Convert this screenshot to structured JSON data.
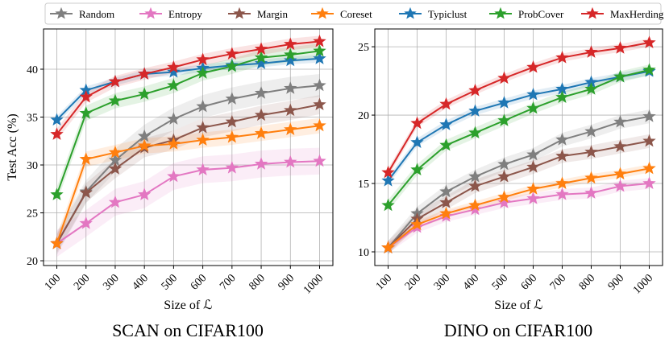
{
  "legend": [
    "Random",
    "Entropy",
    "Margin",
    "Coreset",
    "Typiclust",
    "ProbCover",
    "MaxHerding"
  ],
  "colors": {
    "Random": "#7f7f7f",
    "Entropy": "#e377c2",
    "Margin": "#8c564b",
    "Coreset": "#ff7f0e",
    "Typiclust": "#1f77b4",
    "ProbCover": "#2ca02c",
    "MaxHerding": "#d62728"
  },
  "chart_data": [
    {
      "type": "line",
      "title": "SCAN on CIFAR100",
      "xlabel": "Size of ℒ",
      "ylabel": "Test Acc (%)",
      "x": [
        100,
        200,
        300,
        400,
        500,
        600,
        700,
        800,
        900,
        1000
      ],
      "xtick_labels": [
        "100",
        "200",
        "300",
        "400",
        "500",
        "600",
        "700",
        "800",
        "900",
        "1000"
      ],
      "yticks": [
        20,
        25,
        30,
        35,
        40
      ],
      "ylim": [
        19.5,
        44.2
      ],
      "grid": true,
      "series": [
        {
          "name": "Random",
          "values": [
            21.8,
            27.2,
            30.5,
            33.0,
            34.8,
            36.1,
            36.9,
            37.5,
            38.0,
            38.3
          ],
          "band": 1.2
        },
        {
          "name": "Entropy",
          "values": [
            21.8,
            23.9,
            26.1,
            26.9,
            28.8,
            29.5,
            29.7,
            30.1,
            30.3,
            30.4
          ],
          "band": 1.4
        },
        {
          "name": "Margin",
          "values": [
            21.8,
            27.1,
            29.6,
            31.8,
            32.6,
            33.9,
            34.5,
            35.2,
            35.7,
            36.3
          ],
          "band": 1.0
        },
        {
          "name": "Coreset",
          "values": [
            21.8,
            30.6,
            31.3,
            32.0,
            32.2,
            32.6,
            32.9,
            33.3,
            33.7,
            34.1
          ],
          "band": 0.8
        },
        {
          "name": "Typiclust",
          "values": [
            34.7,
            37.8,
            38.7,
            39.5,
            39.7,
            40.1,
            40.4,
            40.6,
            40.9,
            41.1
          ],
          "band": 0.4
        },
        {
          "name": "ProbCover",
          "values": [
            26.9,
            35.4,
            36.7,
            37.4,
            38.3,
            39.6,
            40.3,
            41.2,
            41.5,
            41.9
          ],
          "band": 0.8
        },
        {
          "name": "MaxHerding",
          "values": [
            33.2,
            37.1,
            38.7,
            39.5,
            40.2,
            41.0,
            41.6,
            42.1,
            42.6,
            42.9
          ],
          "band": 0.6
        }
      ]
    },
    {
      "type": "line",
      "title": "DINO on CIFAR100",
      "xlabel": "Size of ℒ",
      "ylabel": "",
      "x": [
        100,
        200,
        300,
        400,
        500,
        600,
        700,
        800,
        900,
        1000
      ],
      "xtick_labels": [
        "100",
        "200",
        "300",
        "400",
        "500",
        "600",
        "700",
        "800",
        "900",
        "1000"
      ],
      "yticks": [
        10,
        15,
        20,
        25
      ],
      "ylim": [
        9.0,
        26.3
      ],
      "grid": true,
      "series": [
        {
          "name": "Random",
          "values": [
            10.3,
            12.8,
            14.4,
            15.5,
            16.4,
            17.1,
            18.2,
            18.8,
            19.5,
            19.9
          ],
          "band": 0.5
        },
        {
          "name": "Entropy",
          "values": [
            10.3,
            11.8,
            12.6,
            13.1,
            13.6,
            13.9,
            14.2,
            14.3,
            14.8,
            15.0
          ],
          "band": 0.4
        },
        {
          "name": "Margin",
          "values": [
            10.3,
            12.4,
            13.6,
            14.8,
            15.5,
            16.2,
            17.0,
            17.3,
            17.7,
            18.1
          ],
          "band": 0.5
        },
        {
          "name": "Coreset",
          "values": [
            10.3,
            12.0,
            12.8,
            13.4,
            14.0,
            14.6,
            15.0,
            15.4,
            15.7,
            16.1
          ],
          "band": 0.3
        },
        {
          "name": "Typiclust",
          "values": [
            15.2,
            18.0,
            19.3,
            20.3,
            20.9,
            21.5,
            21.9,
            22.4,
            22.8,
            23.2
          ],
          "band": 0.3
        },
        {
          "name": "ProbCover",
          "values": [
            13.4,
            16.0,
            17.8,
            18.7,
            19.6,
            20.5,
            21.3,
            21.9,
            22.8,
            23.3
          ],
          "band": 0.4
        },
        {
          "name": "MaxHerding",
          "values": [
            15.8,
            19.4,
            20.8,
            21.8,
            22.7,
            23.5,
            24.2,
            24.6,
            24.9,
            25.3
          ],
          "band": 0.3
        }
      ]
    }
  ]
}
